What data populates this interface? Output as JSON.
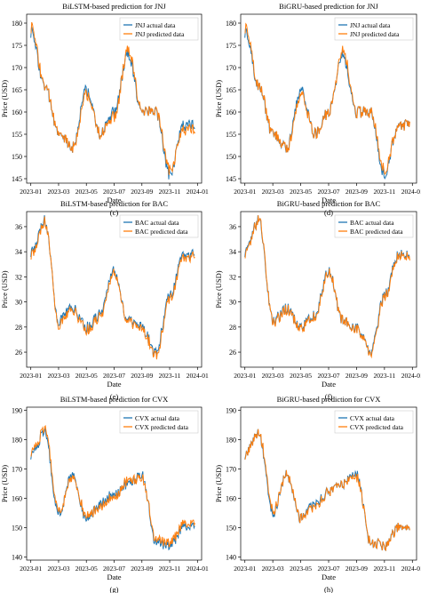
{
  "colors": {
    "actual": "#1f77b4",
    "predicted": "#ff7f0e"
  },
  "chart_data": [
    {
      "type": "line",
      "title": "BiLSTM-based prediction for JNJ",
      "xlabel": "Date",
      "ylabel": "Price (USD)",
      "caption": "(c)",
      "ylim": [
        144,
        182
      ],
      "yticks": [
        145,
        150,
        155,
        160,
        165,
        170,
        175,
        180
      ],
      "legend": "top-right",
      "series": [
        {
          "name": "JNJ actual data",
          "x": [
            "2023-01",
            "2023-02",
            "2023-03",
            "2023-04",
            "2023-05",
            "2023-06",
            "2023-07",
            "2023-08",
            "2023-09",
            "2023-10",
            "2023-11",
            "2023-12"
          ],
          "values": [
            178,
            166,
            155,
            152,
            165,
            155,
            160,
            173,
            160,
            160,
            146,
            157
          ]
        },
        {
          "name": "JNJ predicted data",
          "x": [
            "2023-01",
            "2023-02",
            "2023-03",
            "2023-04",
            "2023-05",
            "2023-06",
            "2023-07",
            "2023-08",
            "2023-09",
            "2023-10",
            "2023-11",
            "2023-12"
          ],
          "values": [
            179,
            166,
            155,
            152,
            164,
            155,
            159,
            174,
            160,
            160,
            147,
            156
          ]
        }
      ]
    },
    {
      "type": "line",
      "title": "BiGRU-based prediction for JNJ",
      "xlabel": "Date",
      "ylabel": "Price (USD)",
      "caption": "(d)",
      "ylim": [
        144,
        182
      ],
      "yticks": [
        145,
        150,
        155,
        160,
        165,
        170,
        175,
        180
      ],
      "legend": "top-right",
      "series": [
        {
          "name": "JNJ actual data",
          "x": [
            "2023-01",
            "2023-02",
            "2023-03",
            "2023-04",
            "2023-05",
            "2023-06",
            "2023-07",
            "2023-08",
            "2023-09",
            "2023-10",
            "2023-11",
            "2023-12"
          ],
          "values": [
            178,
            166,
            155,
            152,
            165,
            155,
            160,
            173,
            160,
            160,
            146,
            157
          ]
        },
        {
          "name": "JNJ predicted data",
          "x": [
            "2023-01",
            "2023-02",
            "2023-03",
            "2023-04",
            "2023-05",
            "2023-06",
            "2023-07",
            "2023-08",
            "2023-09",
            "2023-10",
            "2023-11",
            "2023-12"
          ],
          "values": [
            179,
            166,
            155,
            152,
            164,
            155,
            160,
            174,
            160,
            160,
            147,
            157
          ]
        }
      ]
    },
    {
      "type": "line",
      "title": "BiLSTM-based prediction for BAC",
      "xlabel": "Date",
      "ylabel": "Price (USD)",
      "caption": "(e)",
      "ylim": [
        24.8,
        37.2
      ],
      "yticks": [
        26,
        28,
        30,
        32,
        34,
        36
      ],
      "legend": "top-right",
      "series": [
        {
          "name": "BAC actual data",
          "x": [
            "2023-01",
            "2023-02",
            "2023-03",
            "2023-04",
            "2023-05",
            "2023-06",
            "2023-07",
            "2023-08",
            "2023-09",
            "2023-10",
            "2023-11",
            "2023-12"
          ],
          "values": [
            34,
            36.5,
            28.5,
            29.5,
            28,
            29,
            32.5,
            28.5,
            28,
            26,
            30.5,
            33.8
          ]
        },
        {
          "name": "BAC predicted data",
          "x": [
            "2023-01",
            "2023-02",
            "2023-03",
            "2023-04",
            "2023-05",
            "2023-06",
            "2023-07",
            "2023-08",
            "2023-09",
            "2023-10",
            "2023-11",
            "2023-12"
          ],
          "values": [
            33.8,
            36.4,
            28.2,
            29.3,
            27.8,
            28.8,
            32.3,
            28.4,
            27.8,
            25.8,
            30.3,
            33.6
          ]
        }
      ]
    },
    {
      "type": "line",
      "title": "BiGRU-based prediction for BAC",
      "xlabel": "Date",
      "ylabel": "Price (USD)",
      "caption": "(f)",
      "ylim": [
        24.8,
        37.2
      ],
      "yticks": [
        26,
        28,
        30,
        32,
        34,
        36
      ],
      "legend": "top-right",
      "series": [
        {
          "name": "BAC actual data",
          "x": [
            "2023-01",
            "2023-02",
            "2023-03",
            "2023-04",
            "2023-05",
            "2023-06",
            "2023-07",
            "2023-08",
            "2023-09",
            "2023-10",
            "2023-11",
            "2023-12"
          ],
          "values": [
            34,
            36.5,
            28.5,
            29.5,
            28,
            29,
            32.5,
            28.5,
            28,
            26,
            30.5,
            33.8
          ]
        },
        {
          "name": "BAC predicted data",
          "x": [
            "2023-01",
            "2023-02",
            "2023-03",
            "2023-04",
            "2023-05",
            "2023-06",
            "2023-07",
            "2023-08",
            "2023-09",
            "2023-10",
            "2023-11",
            "2023-12"
          ],
          "values": [
            33.9,
            36.5,
            28.4,
            29.4,
            27.9,
            28.9,
            32.4,
            28.5,
            27.9,
            25.9,
            30.4,
            33.7
          ]
        }
      ]
    },
    {
      "type": "line",
      "title": "BiLSTM-based prediction for CVX",
      "xlabel": "Date",
      "ylabel": "Price (USD)",
      "caption": "(g)",
      "ylim": [
        139,
        191
      ],
      "yticks": [
        140,
        150,
        160,
        170,
        180,
        190
      ],
      "legend": "top-right",
      "series": [
        {
          "name": "CVX actual data",
          "x": [
            "2023-01",
            "2023-02",
            "2023-03",
            "2023-04",
            "2023-05",
            "2023-06",
            "2023-07",
            "2023-08",
            "2023-09",
            "2023-10",
            "2023-11",
            "2023-12"
          ],
          "values": [
            175,
            182,
            155,
            168,
            153,
            158,
            162,
            165,
            168,
            145,
            144,
            150
          ]
        },
        {
          "name": "CVX predicted data",
          "x": [
            "2023-01",
            "2023-02",
            "2023-03",
            "2023-04",
            "2023-05",
            "2023-06",
            "2023-07",
            "2023-08",
            "2023-09",
            "2023-10",
            "2023-11",
            "2023-12"
          ],
          "values": [
            176,
            183,
            156,
            167,
            154,
            157,
            161,
            166,
            167,
            146,
            145,
            151
          ]
        }
      ]
    },
    {
      "type": "line",
      "title": "BiGRU-based prediction for CVX",
      "xlabel": "Date",
      "ylabel": "Price (USD)",
      "caption": "(h)",
      "ylim": [
        139,
        191
      ],
      "yticks": [
        140,
        150,
        160,
        170,
        180,
        190
      ],
      "legend": "top-right",
      "series": [
        {
          "name": "CVX actual data",
          "x": [
            "2023-01",
            "2023-02",
            "2023-03",
            "2023-04",
            "2023-05",
            "2023-06",
            "2023-07",
            "2023-08",
            "2023-09",
            "2023-10",
            "2023-11",
            "2023-12"
          ],
          "values": [
            175,
            182,
            155,
            168,
            153,
            158,
            162,
            165,
            168,
            145,
            144,
            150
          ]
        },
        {
          "name": "CVX predicted data",
          "x": [
            "2023-01",
            "2023-02",
            "2023-03",
            "2023-04",
            "2023-05",
            "2023-06",
            "2023-07",
            "2023-08",
            "2023-09",
            "2023-10",
            "2023-11",
            "2023-12"
          ],
          "values": [
            175,
            182,
            156,
            168,
            153,
            157,
            162,
            165,
            167,
            145,
            144,
            150
          ]
        }
      ]
    }
  ],
  "xticks": [
    "2023-01",
    "2023-03",
    "2023-05",
    "2023-07",
    "2023-09",
    "2023-11",
    "2024-01"
  ]
}
